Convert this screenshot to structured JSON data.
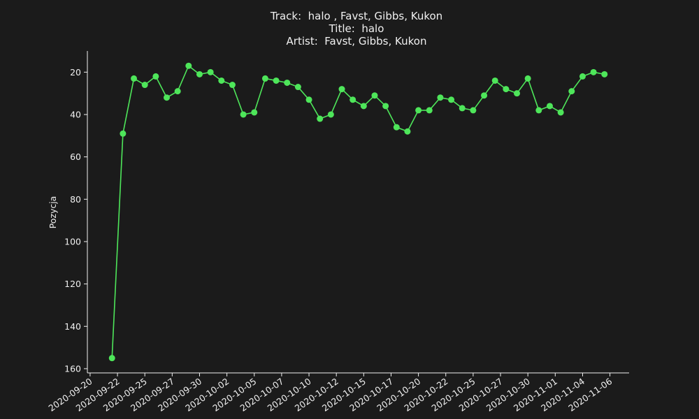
{
  "chart_data": {
    "type": "line",
    "title_lines": [
      "Track:  halo , Favst, Gibbs, Kukon",
      "Title:  halo",
      "Artist:  Favst, Gibbs, Kukon"
    ],
    "y_label": "Pozycja",
    "x": [
      "2020-09-22",
      "2020-09-23",
      "2020-09-24",
      "2020-09-25",
      "2020-09-26",
      "2020-09-27",
      "2020-09-28",
      "2020-09-29",
      "2020-09-30",
      "2020-10-01",
      "2020-10-02",
      "2020-10-03",
      "2020-10-04",
      "2020-10-05",
      "2020-10-06",
      "2020-10-07",
      "2020-10-08",
      "2020-10-09",
      "2020-10-10",
      "2020-10-11",
      "2020-10-12",
      "2020-10-13",
      "2020-10-14",
      "2020-10-15",
      "2020-10-16",
      "2020-10-17",
      "2020-10-18",
      "2020-10-19",
      "2020-10-20",
      "2020-10-21",
      "2020-10-22",
      "2020-10-23",
      "2020-10-24",
      "2020-10-25",
      "2020-10-26",
      "2020-10-27",
      "2020-10-28",
      "2020-10-29",
      "2020-10-30",
      "2020-10-31",
      "2020-11-01",
      "2020-11-02",
      "2020-11-03",
      "2020-11-04",
      "2020-11-05",
      "2020-11-06"
    ],
    "values": [
      155,
      49,
      23,
      26,
      22,
      32,
      29,
      17,
      21,
      20,
      24,
      26,
      40,
      39,
      23,
      24,
      25,
      27,
      33,
      42,
      40,
      28,
      33,
      36,
      31,
      36,
      46,
      48,
      38,
      38,
      32,
      33,
      37,
      38,
      31,
      24,
      28,
      30,
      23,
      38,
      36,
      39,
      29,
      22,
      20,
      21
    ],
    "color": "#4ee65a",
    "xlim": [
      "2020-09-19T18:00",
      "2020-11-08T06:00"
    ],
    "xticks": [
      {
        "value": "2020-09-20T00:00",
        "label": "2020-09-20"
      },
      {
        "value": "2020-09-22T12:00",
        "label": "2020-09-22"
      },
      {
        "value": "2020-09-25T00:00",
        "label": "2020-09-25"
      },
      {
        "value": "2020-09-27T12:00",
        "label": "2020-09-27"
      },
      {
        "value": "2020-09-30T00:00",
        "label": "2020-09-30"
      },
      {
        "value": "2020-10-02T12:00",
        "label": "2020-10-02"
      },
      {
        "value": "2020-10-05T00:00",
        "label": "2020-10-05"
      },
      {
        "value": "2020-10-07T12:00",
        "label": "2020-10-07"
      },
      {
        "value": "2020-10-10T00:00",
        "label": "2020-10-10"
      },
      {
        "value": "2020-10-12T12:00",
        "label": "2020-10-12"
      },
      {
        "value": "2020-10-15T00:00",
        "label": "2020-10-15"
      },
      {
        "value": "2020-10-17T12:00",
        "label": "2020-10-17"
      },
      {
        "value": "2020-10-20T00:00",
        "label": "2020-10-20"
      },
      {
        "value": "2020-10-22T12:00",
        "label": "2020-10-22"
      },
      {
        "value": "2020-10-25T00:00",
        "label": "2020-10-25"
      },
      {
        "value": "2020-10-27T12:00",
        "label": "2020-10-27"
      },
      {
        "value": "2020-10-30T00:00",
        "label": "2020-10-30"
      },
      {
        "value": "2020-11-01T12:00",
        "label": "2020-11-01"
      },
      {
        "value": "2020-11-04T00:00",
        "label": "2020-11-04"
      },
      {
        "value": "2020-11-06T12:00",
        "label": "2020-11-06"
      }
    ],
    "ylim": [
      162,
      10
    ],
    "yticks": [
      20,
      40,
      60,
      80,
      100,
      120,
      140,
      160
    ],
    "grid": false
  }
}
